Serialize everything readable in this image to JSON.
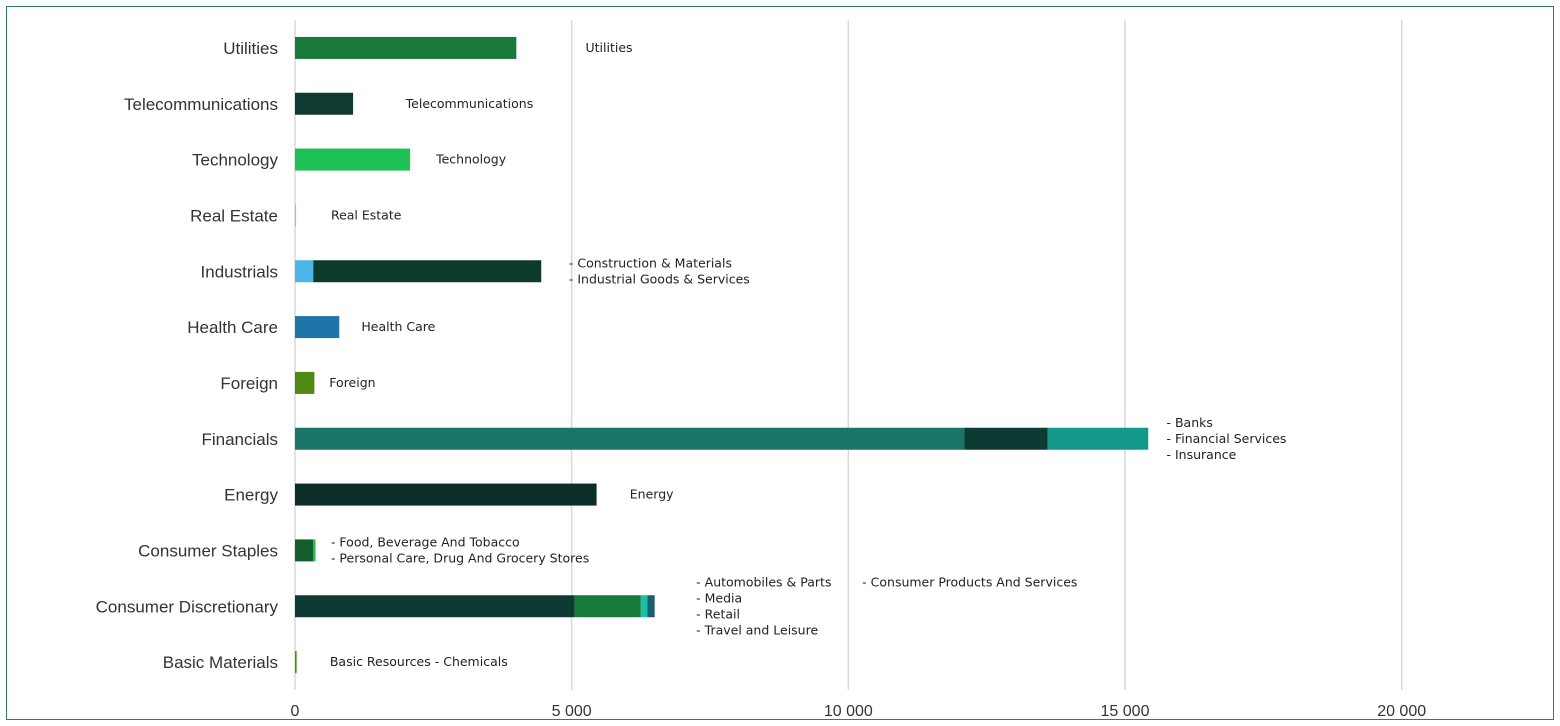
{
  "chart_data": {
    "type": "bar",
    "orientation": "horizontal",
    "stacked": true,
    "title": "",
    "xlabel": "",
    "ylabel": "",
    "xlim": [
      0,
      22500
    ],
    "x_ticks": [
      0,
      5000,
      10000,
      15000,
      20000
    ],
    "x_tick_labels": [
      "0",
      "5 000",
      "10 000",
      "15 000",
      "20 000"
    ],
    "grid": "vertical",
    "legend": "none",
    "categories": [
      {
        "name": "Utilities",
        "segments": [
          {
            "value": 4000,
            "color": "#187a3a"
          }
        ],
        "annotations": [
          {
            "text": "Utilities",
            "x_value": 5250,
            "line": 0
          }
        ]
      },
      {
        "name": "Telecommunications",
        "segments": [
          {
            "value": 1050,
            "color": "#0f3b33"
          }
        ],
        "annotations": [
          {
            "text": "Telecommunications",
            "x_value": 2000,
            "line": 0
          }
        ]
      },
      {
        "name": "Technology",
        "segments": [
          {
            "value": 2080,
            "color": "#1ec153"
          }
        ],
        "annotations": [
          {
            "text": "Technology",
            "x_value": 2550,
            "line": 0
          }
        ]
      },
      {
        "name": "Real Estate",
        "segments": [
          {
            "value": 20,
            "color": "#a8d63c"
          }
        ],
        "annotations": [
          {
            "text": "Real Estate",
            "x_value": 650,
            "line": 0
          }
        ]
      },
      {
        "name": "Industrials",
        "segments": [
          {
            "value": 330,
            "color": "#4ab6ea"
          },
          {
            "value": 4120,
            "color": "#0c3b2a"
          }
        ],
        "annotations": [
          {
            "text": "- Construction & Materials",
            "x_value": 4950,
            "line": -1
          },
          {
            "text": "- Industrial Goods & Services",
            "x_value": 4950,
            "line": 1
          }
        ]
      },
      {
        "name": "Health Care",
        "segments": [
          {
            "value": 800,
            "color": "#1d75a8"
          }
        ],
        "annotations": [
          {
            "text": "Health Care",
            "x_value": 1200,
            "line": 0
          }
        ]
      },
      {
        "name": "Foreign",
        "segments": [
          {
            "value": 350,
            "color": "#4e8a12"
          }
        ],
        "annotations": [
          {
            "text": "Foreign",
            "x_value": 620,
            "line": 0
          }
        ]
      },
      {
        "name": "Financials",
        "segments": [
          {
            "value": 12100,
            "color": "#197565"
          },
          {
            "value": 1500,
            "color": "#0d3b33"
          },
          {
            "value": 1820,
            "color": "#12998a"
          }
        ],
        "annotations": [
          {
            "text": "- Banks",
            "x_value": 15750,
            "line": -2
          },
          {
            "text": "- Financial Services",
            "x_value": 15750,
            "line": 0
          },
          {
            "text": "- Insurance",
            "x_value": 15750,
            "line": 2
          }
        ]
      },
      {
        "name": "Energy",
        "segments": [
          {
            "value": 5450,
            "color": "#0d2e28"
          }
        ],
        "annotations": [
          {
            "text": "Energy",
            "x_value": 6050,
            "line": 0
          }
        ]
      },
      {
        "name": "Consumer Staples",
        "segments": [
          {
            "value": 330,
            "color": "#145e2c"
          },
          {
            "value": 40,
            "color": "#26b84f"
          }
        ],
        "annotations": [
          {
            "text": "- Food, Beverage And Tobacco",
            "x_value": 650,
            "line": -1
          },
          {
            "text": "- Personal Care, Drug And Grocery Stores",
            "x_value": 650,
            "line": 1
          }
        ]
      },
      {
        "name": "Consumer Discretionary",
        "segments": [
          {
            "value": 5050,
            "color": "#0d3b33"
          },
          {
            "value": 1200,
            "color": "#187a3a"
          },
          {
            "value": 120,
            "color": "#19c0ac"
          },
          {
            "value": 130,
            "color": "#185f6a"
          }
        ],
        "annotations": [
          {
            "text": "- Automobiles & Parts",
            "x_value": 7250,
            "line": -3
          },
          {
            "text": "- Consumer Products And Services",
            "x_value": 10250,
            "line": -3
          },
          {
            "text": "- Media",
            "x_value": 7250,
            "line": -1
          },
          {
            "text": "- Retail",
            "x_value": 7250,
            "line": 1
          },
          {
            "text": "- Travel and Leisure",
            "x_value": 7250,
            "line": 3
          }
        ]
      },
      {
        "name": "Basic Materials",
        "segments": [
          {
            "value": 15,
            "color": "#1b8f3c"
          },
          {
            "value": 20,
            "color": "#76c043"
          }
        ],
        "annotations": [
          {
            "text": "Basic Resources - Chemicals",
            "x_value": 630,
            "line": 0
          }
        ]
      }
    ]
  }
}
